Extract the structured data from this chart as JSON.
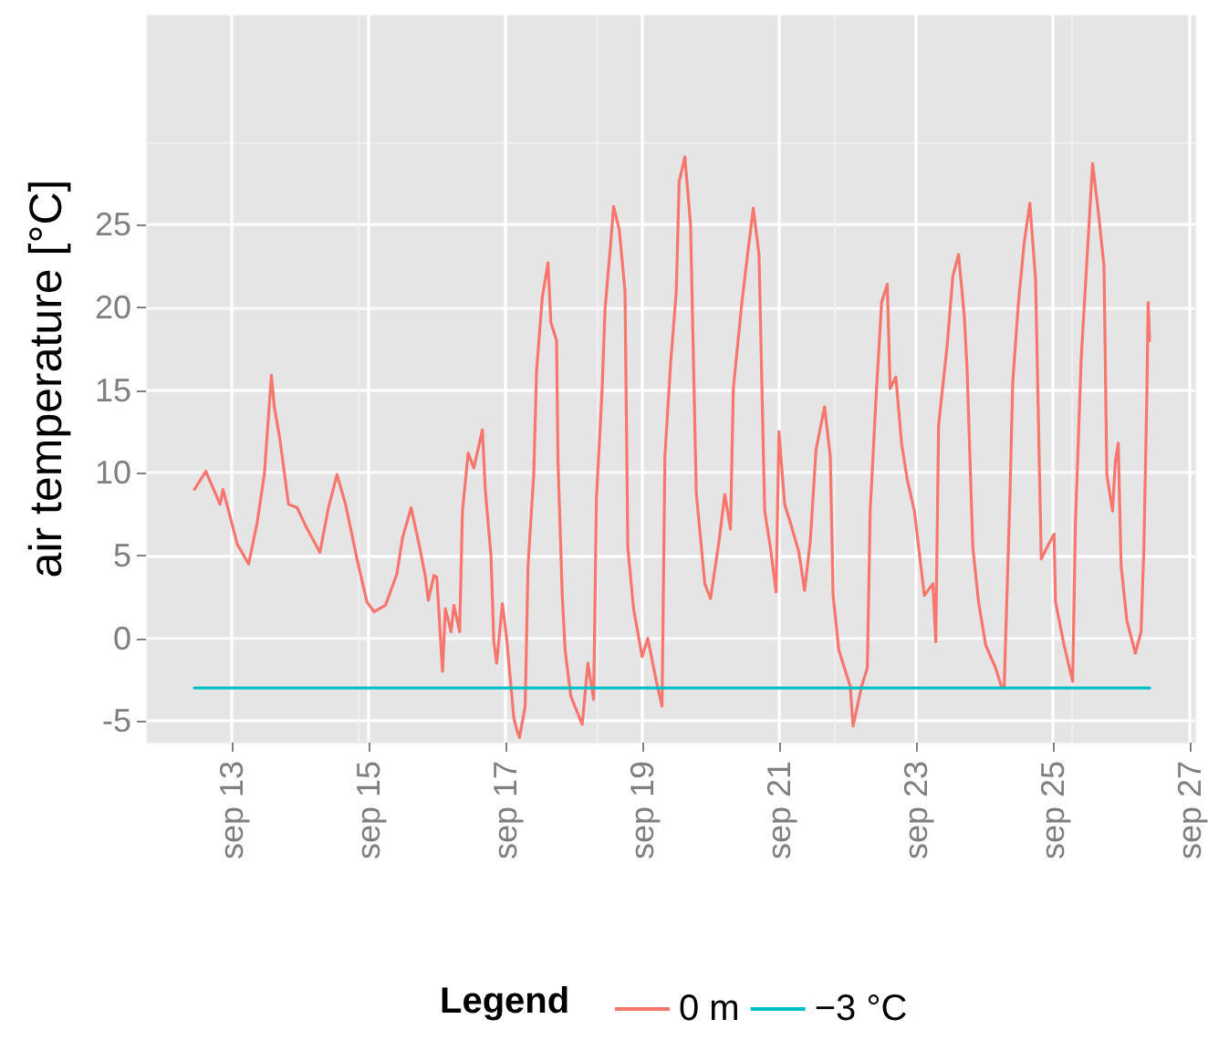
{
  "chart_data": {
    "type": "line",
    "ylabel": "air temperature [°C]",
    "legend_title": "Legend",
    "legend": "bottom",
    "grid": true,
    "marker": "none",
    "line_style": "solid",
    "xlim": [
      "--09-11T18:00",
      "--09-27T02:00"
    ],
    "xticks": [
      {
        "value": "--09-13",
        "label": "sep 13"
      },
      {
        "value": "--09-15",
        "label": "sep 15"
      },
      {
        "value": "--09-17",
        "label": "sep 17"
      },
      {
        "value": "--09-19",
        "label": "sep 19"
      },
      {
        "value": "--09-21",
        "label": "sep 21"
      },
      {
        "value": "--09-23",
        "label": "sep 23"
      },
      {
        "value": "--09-25",
        "label": "sep 25"
      },
      {
        "value": "--09-27",
        "label": "sep 27"
      }
    ],
    "ylim": [
      -6.3,
      37.7
    ],
    "yticks": [
      -5,
      0,
      5,
      10,
      15,
      20,
      25
    ],
    "series": [
      {
        "name": "0 m",
        "color": "#f8766d",
        "x": [
          "--09-12T11:00",
          "--09-12T15:00",
          "--09-12T20:00",
          "--09-12T21:00",
          "--09-12T23:00",
          "--09-13T02:00",
          "--09-13T06:00",
          "--09-13T09:00",
          "--09-13T11:30",
          "--09-13T14:00",
          "--09-13T15:00",
          "--09-13T17:00",
          "--09-13T20:00",
          "--09-13T23:00",
          "--09-14T02:00",
          "--09-14T07:00",
          "--09-14T10:00",
          "--09-14T13:00",
          "--09-14T16:00",
          "--09-14T20:00",
          "--09-14T23:30",
          "--09-15T02:00",
          "--09-15T06:00",
          "--09-15T10:00",
          "--09-15T12:00",
          "--09-15T15:00",
          "--09-15T18:00",
          "--09-15T20:00",
          "--09-15T21:00",
          "--09-15T23:00",
          "--09-16T00:00",
          "--09-16T02:00",
          "--09-16T03:00",
          "--09-16T05:00",
          "--09-16T06:00",
          "--09-16T08:00",
          "--09-16T09:00",
          "--09-16T11:00",
          "--09-16T13:00",
          "--09-16T16:00",
          "--09-16T17:00",
          "--09-16T19:00",
          "--09-16T20:00",
          "--09-16T21:00",
          "--09-16T23:00",
          "--09-17T00:30",
          "--09-17T03:00",
          "--09-17T04:00",
          "--09-17T05:00",
          "--09-17T07:00",
          "--09-17T08:00",
          "--09-17T10:00",
          "--09-17T11:00",
          "--09-17T13:00",
          "--09-17T15:00",
          "--09-17T16:00",
          "--09-17T18:00",
          "--09-17T18:30",
          "--09-17T20:00",
          "--09-17T21:00",
          "--09-17T23:00",
          "--09-18T03:00",
          "--09-18T05:00",
          "--09-18T07:00",
          "--09-18T08:00",
          "--09-18T10:00",
          "--09-18T11:00",
          "--09-18T13:00",
          "--09-18T14:00",
          "--09-18T16:00",
          "--09-18T18:00",
          "--09-18T19:00",
          "--09-18T21:00",
          "--09-19T00:00",
          "--09-19T02:00",
          "--09-19T05:00",
          "--09-19T07:00",
          "--09-19T08:00",
          "--09-19T10:00",
          "--09-19T12:00",
          "--09-19T13:00",
          "--09-19T15:00",
          "--09-19T17:00",
          "--09-19T19:00",
          "--09-19T22:00",
          "--09-20T00:00",
          "--09-20T03:00",
          "--09-20T05:00",
          "--09-20T07:00",
          "--09-20T08:00",
          "--09-20T11:00",
          "--09-20T13:00",
          "--09-20T15:00",
          "--09-20T17:00",
          "--09-20T19:00",
          "--09-20T21:00",
          "--09-20T23:00",
          "--09-21T00:00",
          "--09-21T02:00",
          "--09-21T04:00",
          "--09-21T07:00",
          "--09-21T09:00",
          "--09-21T11:00",
          "--09-21T13:00",
          "--09-21T16:00",
          "--09-21T18:00",
          "--09-21T19:00",
          "--09-21T21:00",
          "--09-22T01:00",
          "--09-22T02:00",
          "--09-22T05:00",
          "--09-22T07:00",
          "--09-22T08:00",
          "--09-22T10:00",
          "--09-22T11:00",
          "--09-22T12:00",
          "--09-22T14:00",
          "--09-22T15:00",
          "--09-22T17:00",
          "--09-22T19:00",
          "--09-22T21:00",
          "--09-22T23:30",
          "--09-23T03:00",
          "--09-23T06:00",
          "--09-23T07:00",
          "--09-23T08:00",
          "--09-23T11:00",
          "--09-23T13:00",
          "--09-23T15:00",
          "--09-23T17:00",
          "--09-23T18:00",
          "--09-23T20:00",
          "--09-23T22:00",
          "--09-24T00:30",
          "--09-24T04:00",
          "--09-24T06:00",
          "--09-24T07:00",
          "--09-24T09:00",
          "--09-24T10:00",
          "--09-24T12:00",
          "--09-24T14:00",
          "--09-24T16:00",
          "--09-24T18:00",
          "--09-24T20:00",
          "--09-24T22:00",
          "--09-25T00:30",
          "--09-25T01:00",
          "--09-25T04:00",
          "--09-25T07:00",
          "--09-25T08:00",
          "--09-25T10:00",
          "--09-25T12:00",
          "--09-25T14:00",
          "--09-25T16:00",
          "--09-25T18:00",
          "--09-25T19:00",
          "--09-25T21:00",
          "--09-25T22:00",
          "--09-25T23:00",
          "--09-26T00:00",
          "--09-26T02:00",
          "--09-26T05:00",
          "--09-26T07:00",
          "--09-26T08:00",
          "--09-26T09:00",
          "--09-26T09:30",
          "--09-26T10:00"
        ],
        "values": [
          9.0,
          10.1,
          8.1,
          9.0,
          7.7,
          5.7,
          4.5,
          7.0,
          9.9,
          15.9,
          14.0,
          12.0,
          8.1,
          7.9,
          6.8,
          5.2,
          7.9,
          9.9,
          8.1,
          4.8,
          2.2,
          1.6,
          2.0,
          3.9,
          6.1,
          7.9,
          5.5,
          3.7,
          2.3,
          3.8,
          3.7,
          -2.0,
          1.8,
          0.4,
          2.0,
          0.4,
          7.7,
          11.2,
          10.3,
          12.6,
          9.0,
          5.0,
          -0.2,
          -1.5,
          2.1,
          0.0,
          -4.8,
          -5.5,
          -6.0,
          -4.1,
          4.4,
          9.9,
          16.2,
          20.6,
          22.7,
          19.1,
          18.0,
          10.7,
          2.6,
          -0.7,
          -3.5,
          -5.2,
          -1.5,
          -3.7,
          8.5,
          15.1,
          19.9,
          23.9,
          26.1,
          24.7,
          21.0,
          5.5,
          1.8,
          -1.1,
          0.0,
          -2.6,
          -4.1,
          11.0,
          16.6,
          21.0,
          27.6,
          29.1,
          25.0,
          8.8,
          3.3,
          2.4,
          5.9,
          8.7,
          6.6,
          15.1,
          20.3,
          23.2,
          26.0,
          23.2,
          7.7,
          5.5,
          2.8,
          12.5,
          8.1,
          7.0,
          5.2,
          2.9,
          5.9,
          11.4,
          14.0,
          11.0,
          2.6,
          -0.7,
          -2.9,
          -5.3,
          -2.9,
          -1.8,
          7.7,
          14.4,
          17.3,
          20.3,
          21.4,
          15.1,
          15.8,
          11.8,
          9.6,
          7.7,
          2.6,
          3.3,
          -0.2,
          12.9,
          17.7,
          21.9,
          23.2,
          19.5,
          16.2,
          5.5,
          2.2,
          -0.4,
          -1.8,
          -2.9,
          -2.9,
          8.5,
          15.5,
          20.3,
          23.9,
          26.3,
          21.7,
          4.8,
          5.5,
          6.3,
          2.2,
          -0.4,
          -2.6,
          7.0,
          16.9,
          22.8,
          28.7,
          25.8,
          22.5,
          9.9,
          7.7,
          10.7,
          11.8,
          4.4,
          1.1,
          -0.9,
          0.4,
          5.5,
          14.4,
          20.3,
          18.0
        ]
      },
      {
        "name": "−3 °C",
        "color": "#00bfc4",
        "x": [
          "--09-12T11:00",
          "--09-26T10:00"
        ],
        "values": [
          -3,
          -3
        ]
      }
    ]
  }
}
